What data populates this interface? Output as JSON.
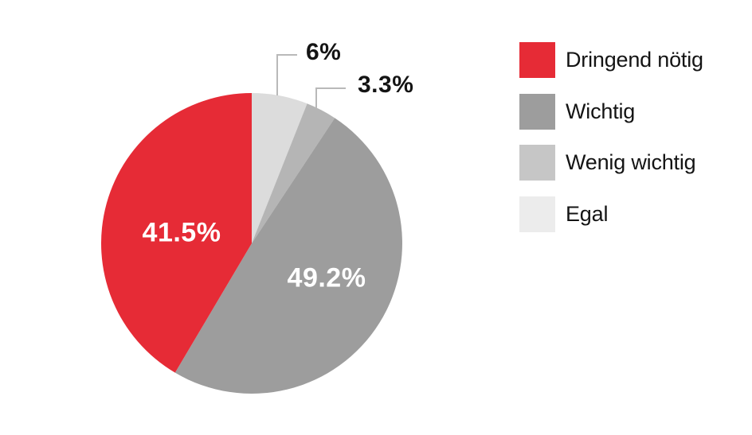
{
  "chart_data": {
    "type": "pie",
    "background": "#ffffff",
    "slices_clockwise_from_top": [
      {
        "label": "Egal",
        "value": 6,
        "display": "6%",
        "color": "#dcdcdc",
        "label_style": "callout-black"
      },
      {
        "label": "Wenig wichtig",
        "value": 3.3,
        "display": "3.3%",
        "color": "#b5b5b5",
        "label_style": "callout-black"
      },
      {
        "label": "Wichtig",
        "value": 49.2,
        "display": "49.2%",
        "color": "#9d9d9d",
        "label_style": "inside-white"
      },
      {
        "label": "Dringend nötig",
        "value": 41.5,
        "display": "41.5%",
        "color": "#e62b36",
        "label_style": "inside-white"
      }
    ],
    "legend": {
      "position": "right",
      "items": [
        {
          "label": "Dringend nötig",
          "color": "#e62b36"
        },
        {
          "label": "Wichtig",
          "color": "#9d9d9d"
        },
        {
          "label": "Wenig wichtig",
          "color": "#c6c6c6"
        },
        {
          "label": "Egal",
          "color": "#ececec"
        }
      ]
    },
    "label_colors": {
      "inside": "#ffffff",
      "callout": "#141414",
      "leader_line": "#b9b9b9"
    }
  }
}
